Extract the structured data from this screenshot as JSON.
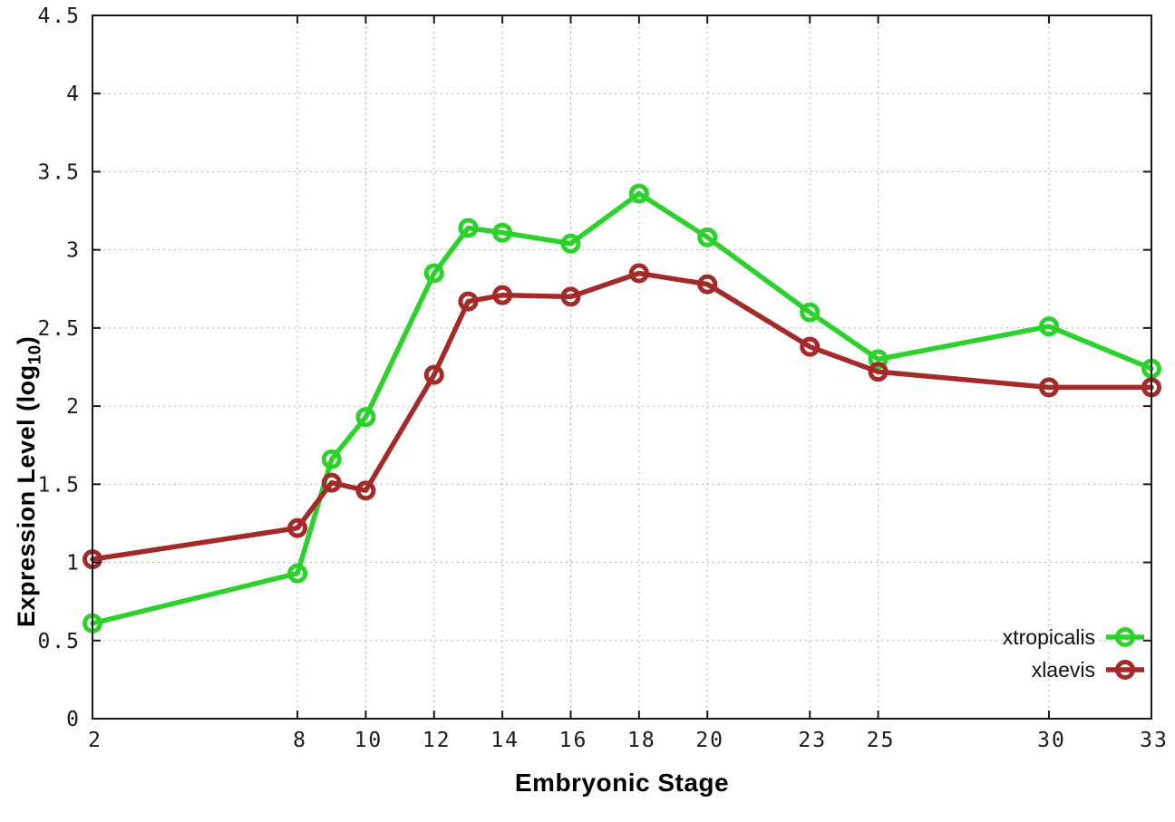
{
  "chart_data": {
    "type": "line",
    "title": "",
    "xlabel": "Embryonic Stage",
    "ylabel": "Expression Level (log10)",
    "ylabel_parts": {
      "main": "Expression Level (log",
      "sub": "10",
      "close": ")"
    },
    "x": [
      2,
      8,
      9,
      10,
      12,
      13,
      14,
      16,
      18,
      20,
      23,
      25,
      30,
      33
    ],
    "series": [
      {
        "name": "xtropicalis",
        "color": "#2bd22b",
        "values": [
          0.61,
          0.93,
          1.66,
          1.93,
          2.85,
          3.14,
          3.11,
          3.04,
          3.36,
          3.08,
          2.6,
          2.3,
          2.51,
          2.24
        ]
      },
      {
        "name": "xlaevis",
        "color": "#a32a28",
        "values": [
          1.02,
          1.22,
          1.51,
          1.46,
          2.2,
          2.67,
          2.71,
          2.7,
          2.85,
          2.78,
          2.38,
          2.22,
          2.12,
          2.12
        ]
      }
    ],
    "xlim": [
      2,
      33
    ],
    "ylim": [
      0,
      4.5
    ],
    "xticks": [
      2,
      8,
      10,
      12,
      14,
      16,
      18,
      20,
      23,
      25,
      30,
      33
    ],
    "yticks": [
      0,
      0.5,
      1,
      1.5,
      2,
      2.5,
      3,
      3.5,
      4,
      4.5
    ],
    "grid": true,
    "legend_position": "bottom-right"
  },
  "style": {
    "axis_color": "#1a1a1a",
    "grid_color": "#b0b0b0",
    "tick_text_color": "#1a1a1a",
    "background": "#ffffff"
  }
}
